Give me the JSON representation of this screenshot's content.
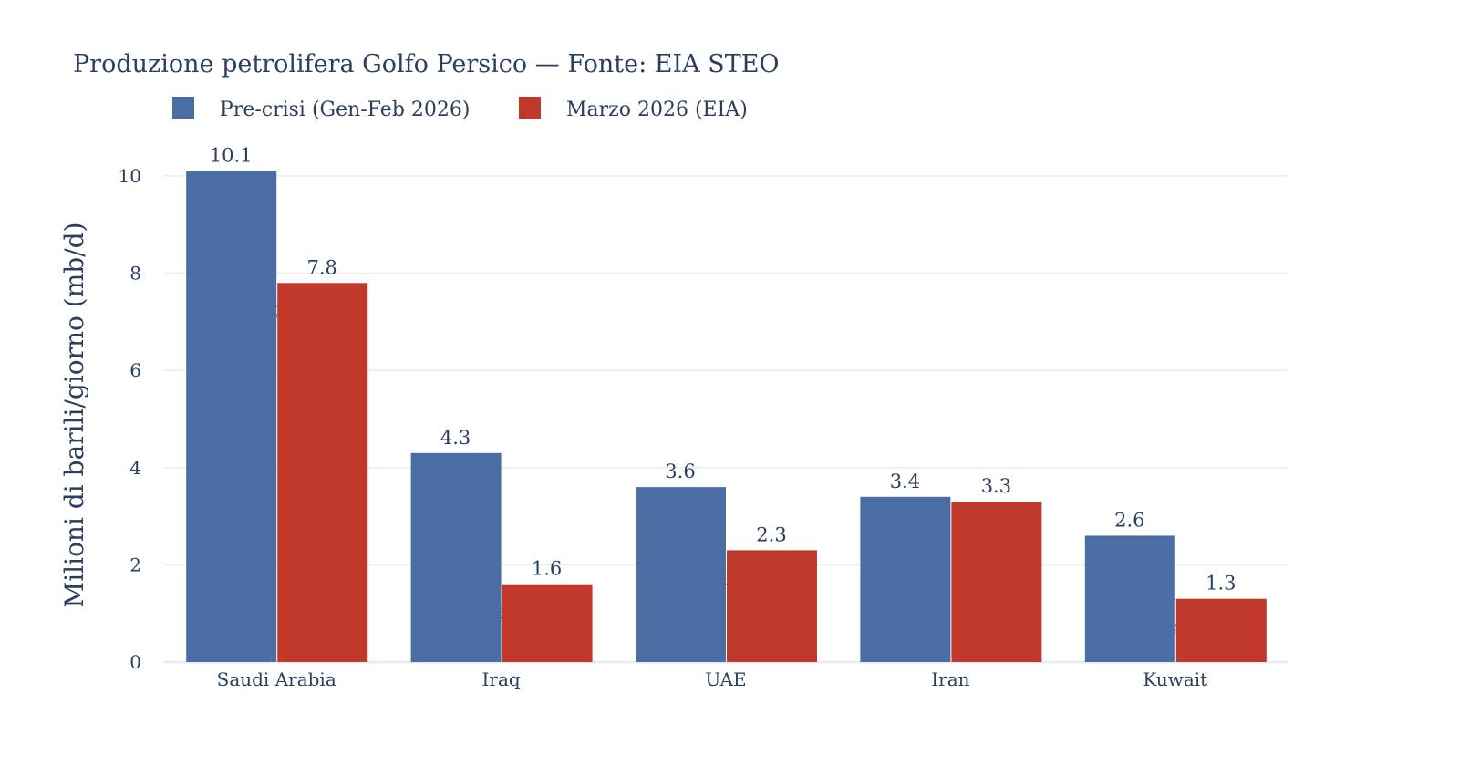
{
  "colors": {
    "pre": "#4a6ea4",
    "march": "#c0392b",
    "text": "#2a3f5f",
    "pct": "#c0392b"
  },
  "chart_data": {
    "type": "bar",
    "title": "Produzione petrolifera Golfo Persico — Fonte: EIA STEO",
    "xlabel": "",
    "ylabel": "Milioni di barili/giorno (mb/d)",
    "ylim": [
      0,
      10.5
    ],
    "yticks": [
      0,
      2,
      4,
      6,
      8,
      10
    ],
    "grid": true,
    "legend_placement": "top-left",
    "categories": [
      "Saudi Arabia",
      "Iraq",
      "UAE",
      "Iran",
      "Kuwait"
    ],
    "series": [
      {
        "name": "Pre-crisi (Gen-Feb 2026)",
        "values": [
          10.1,
          4.3,
          3.6,
          3.4,
          2.6
        ],
        "labels": [
          "10.1",
          "4.3",
          "3.6",
          "3.4",
          "2.6"
        ]
      },
      {
        "name": "Marzo 2026 (EIA)",
        "values": [
          7.8,
          1.6,
          2.3,
          3.3,
          1.3
        ],
        "labels": [
          "7.8",
          "1.6",
          "2.3",
          "3.3",
          "1.3"
        ]
      }
    ],
    "annotations": [
      {
        "category": "Saudi Arabia",
        "text": "-2",
        "y": 7.2
      },
      {
        "category": "Iraq",
        "text": "-6",
        "y": 1.0
      },
      {
        "category": "UAE",
        "text": "-3",
        "y": 1.7
      },
      {
        "category": "Kuwait",
        "text": "-4",
        "y": 0.7
      }
    ]
  }
}
